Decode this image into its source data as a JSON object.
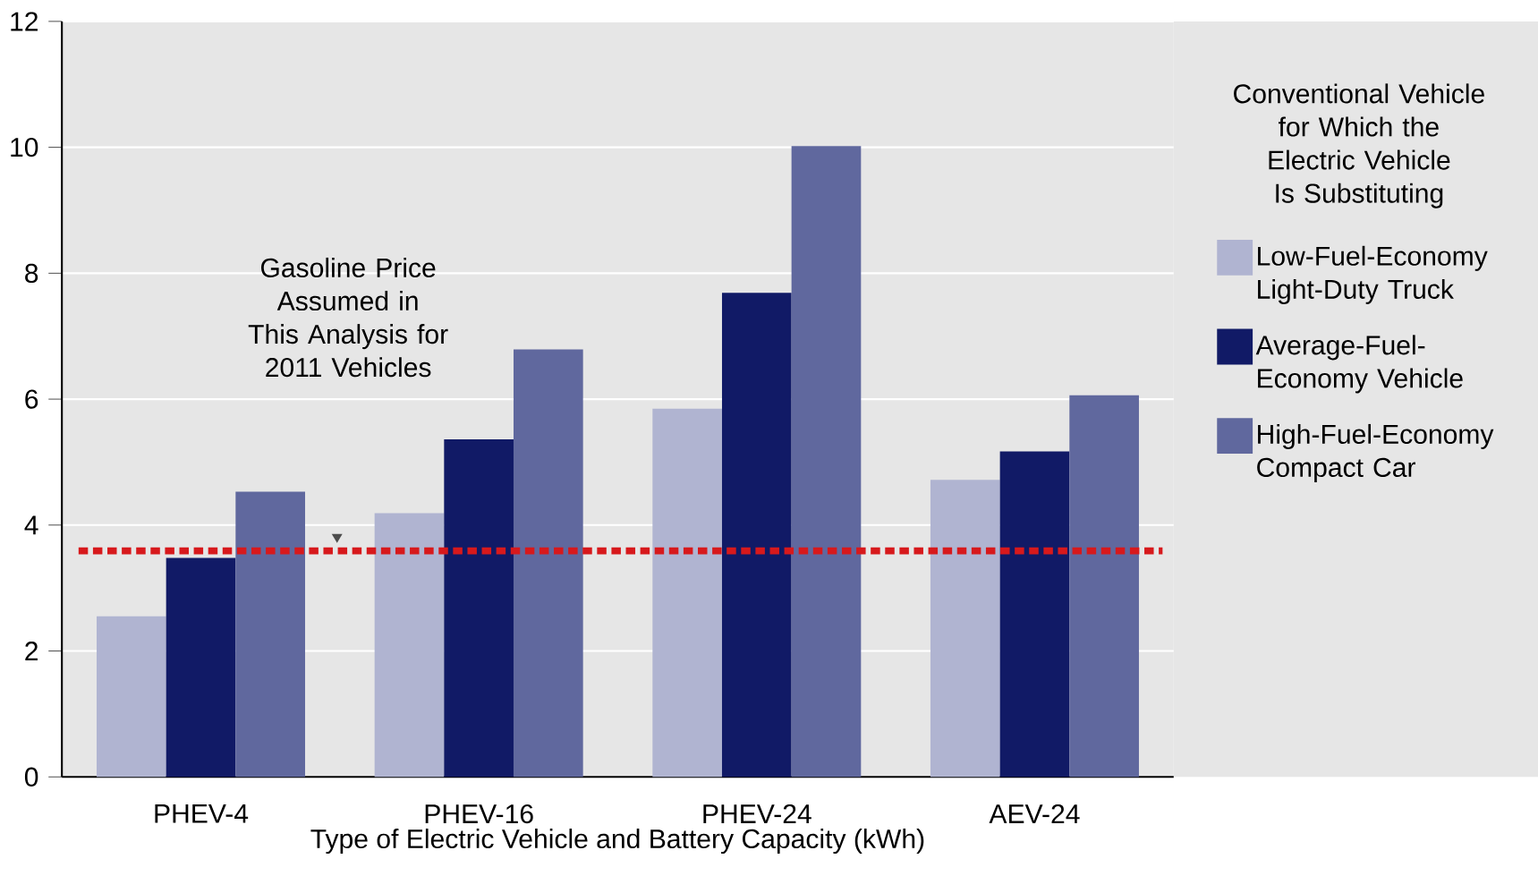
{
  "chart_data": {
    "type": "bar",
    "xlabel": "Type of Electric Vehicle and Battery Capacity (kWh)",
    "legend_title": "Conventional Vehicle for Which the Electric Vehicle Is Substituting",
    "categories": [
      "PHEV-4",
      "PHEV-16",
      "PHEV-24",
      "AEV-24"
    ],
    "series": [
      {
        "name": "Low-Fuel-Economy Light-Duty Truck",
        "color": "#b0b4d1",
        "values": [
          2.55,
          4.19,
          5.85,
          4.72
        ]
      },
      {
        "name": "Average-Fuel-Economy Vehicle",
        "color": "#111a66",
        "values": [
          3.48,
          5.36,
          7.69,
          5.17
        ]
      },
      {
        "name": "High-Fuel-Economy Compact Car",
        "color": "#60689e",
        "values": [
          4.53,
          6.79,
          10.02,
          6.06
        ]
      }
    ],
    "ylim": [
      0,
      12
    ],
    "yticks": [
      0,
      2,
      4,
      6,
      8,
      10,
      12
    ],
    "grid": "y",
    "legend": "right",
    "ref_lines": [
      {
        "axis": "y",
        "value": 3.59,
        "color": "#d7191c",
        "line_style": "dotted"
      }
    ],
    "annotations": [
      "Gasoline Price Assumed in This Analysis for 2011 Vehicles"
    ]
  }
}
